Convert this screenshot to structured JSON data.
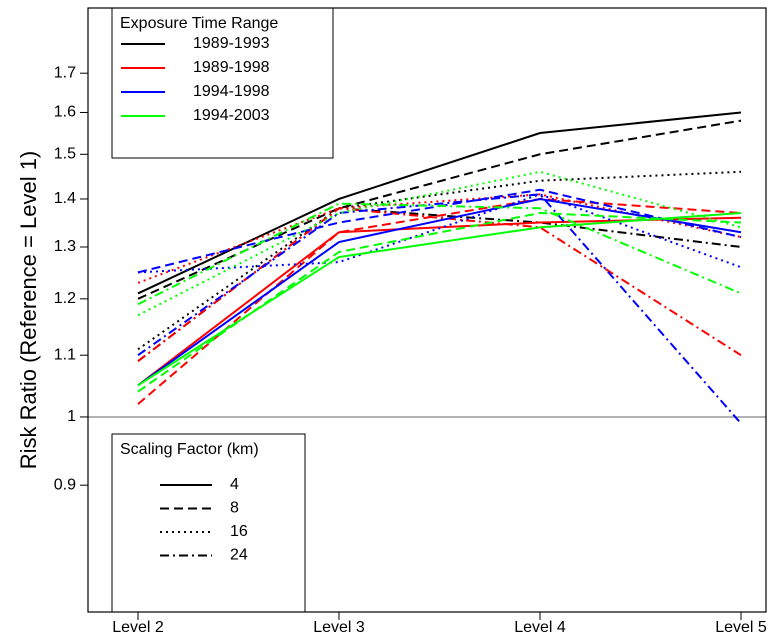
{
  "chart_data": {
    "type": "line",
    "ylabel": "Risk Ratio (Reference = Level 1)",
    "categories": [
      "Level 2",
      "Level 3",
      "Level 4",
      "Level 5"
    ],
    "log_y": true,
    "ylim": [
      0.74,
      1.88
    ],
    "yticks": [
      0.9,
      1.0,
      1.1,
      1.2,
      1.3,
      1.4,
      1.5,
      1.6,
      1.7
    ],
    "hline": 1.0,
    "hline_color": "#999999",
    "color_legend": {
      "title": "Exposure Time Range",
      "entries": [
        {
          "label": "1989-1993",
          "color": "#000000"
        },
        {
          "label": "1989-1998",
          "color": "#ff0000"
        },
        {
          "label": "1994-1998",
          "color": "#0000ff"
        },
        {
          "label": "1994-2003",
          "color": "#00ff00"
        }
      ]
    },
    "style_legend": {
      "title": "Scaling Factor (km)",
      "entries": [
        {
          "label": "4",
          "dash": "solid"
        },
        {
          "label": "8",
          "dash": "dashed"
        },
        {
          "label": "16",
          "dash": "dotted"
        },
        {
          "label": "24",
          "dash": "dotdash"
        }
      ]
    },
    "series": [
      {
        "color": "#000000",
        "dash": "solid",
        "values": [
          1.21,
          1.4,
          1.55,
          1.6
        ]
      },
      {
        "color": "#000000",
        "dash": "dashed",
        "values": [
          1.2,
          1.38,
          1.5,
          1.58
        ]
      },
      {
        "color": "#000000",
        "dash": "dotted",
        "values": [
          1.11,
          1.38,
          1.44,
          1.46
        ]
      },
      {
        "color": "#000000",
        "dash": "dotdash",
        "values": [
          1.09,
          1.38,
          1.35,
          1.3
        ]
      },
      {
        "color": "#ff0000",
        "dash": "solid",
        "values": [
          1.05,
          1.33,
          1.35,
          1.36
        ]
      },
      {
        "color": "#ff0000",
        "dash": "dashed",
        "values": [
          1.02,
          1.33,
          1.4,
          1.37
        ]
      },
      {
        "color": "#ff0000",
        "dash": "dotted",
        "values": [
          1.23,
          1.38,
          1.41,
          1.32
        ]
      },
      {
        "color": "#ff0000",
        "dash": "dotdash",
        "values": [
          1.09,
          1.38,
          1.34,
          1.1
        ]
      },
      {
        "color": "#0000ff",
        "dash": "solid",
        "values": [
          1.05,
          1.31,
          1.4,
          1.33
        ]
      },
      {
        "color": "#0000ff",
        "dash": "dashed",
        "values": [
          1.25,
          1.35,
          1.42,
          1.32
        ]
      },
      {
        "color": "#0000ff",
        "dash": "dotted",
        "values": [
          1.25,
          1.27,
          1.41,
          1.26
        ]
      },
      {
        "color": "#0000ff",
        "dash": "dotdash",
        "values": [
          1.1,
          1.37,
          1.41,
          0.99
        ]
      },
      {
        "color": "#00ff00",
        "dash": "solid",
        "values": [
          1.05,
          1.28,
          1.34,
          1.37
        ]
      },
      {
        "color": "#00ff00",
        "dash": "dashed",
        "values": [
          1.04,
          1.29,
          1.37,
          1.35
        ]
      },
      {
        "color": "#00ff00",
        "dash": "dotted",
        "values": [
          1.17,
          1.37,
          1.46,
          1.34
        ]
      },
      {
        "color": "#00ff00",
        "dash": "dotdash",
        "values": [
          1.19,
          1.39,
          1.38,
          1.21
        ]
      }
    ]
  }
}
